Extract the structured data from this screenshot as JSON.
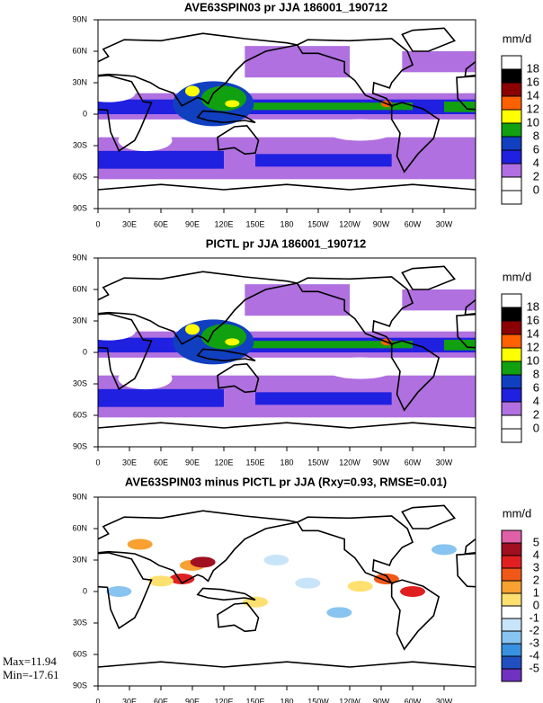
{
  "panels": [
    {
      "title": "AVE63SPIN03 pr JJA 186001_190712",
      "units": "mm/d",
      "xticks": [
        "0",
        "30E",
        "60E",
        "90E",
        "120E",
        "150E",
        "180",
        "150W",
        "120W",
        "90W",
        "60W",
        "30W"
      ],
      "yticks": [
        "90N",
        "60N",
        "30N",
        "0",
        "30S",
        "60S",
        "90S"
      ],
      "levels": [
        18,
        16,
        14,
        12,
        10,
        8,
        6,
        4,
        2,
        0
      ],
      "colors": [
        "#ffffff",
        "#000000",
        "#8b0000",
        "#ff6000",
        "#ffff00",
        "#10a010",
        "#1040c0",
        "#2020e0",
        "#b070e0",
        "#ffffff",
        "#ffffff"
      ]
    },
    {
      "title": "PICTL pr JJA 186001_190712",
      "units": "mm/d",
      "xticks": [
        "0",
        "30E",
        "60E",
        "90E",
        "120E",
        "150E",
        "180",
        "150W",
        "120W",
        "90W",
        "60W",
        "30W"
      ],
      "yticks": [
        "90N",
        "60N",
        "30N",
        "0",
        "30S",
        "60S",
        "90S"
      ],
      "levels": [
        18,
        16,
        14,
        12,
        10,
        8,
        6,
        4,
        2,
        0
      ],
      "colors": [
        "#ffffff",
        "#000000",
        "#8b0000",
        "#ff6000",
        "#ffff00",
        "#10a010",
        "#1040c0",
        "#2020e0",
        "#b070e0",
        "#ffffff",
        "#ffffff"
      ]
    },
    {
      "title": "AVE63SPIN03 minus PICTL pr JJA (Rxy=0.93, RMSE=0.01)",
      "units": "mm/d",
      "xticks": [
        "0",
        "30E",
        "60E",
        "90E",
        "120E",
        "150E",
        "180",
        "150W",
        "120W",
        "90W",
        "60W",
        "30W"
      ],
      "yticks": [
        "90N",
        "60N",
        "30N",
        "0",
        "30S",
        "60S",
        "90S"
      ],
      "levels": [
        5,
        4,
        3,
        2,
        1,
        0,
        -1,
        -2,
        -3,
        -4,
        -5
      ],
      "colors": [
        "#e060a8",
        "#a01020",
        "#e02020",
        "#f05818",
        "#f8a030",
        "#fde070",
        "#ffffff",
        "#c8e4f8",
        "#88c4f0",
        "#3890e0",
        "#2050c0",
        "#7030c0"
      ]
    }
  ],
  "stats": [
    "Max=11.94",
    "Min=-17.61"
  ]
}
